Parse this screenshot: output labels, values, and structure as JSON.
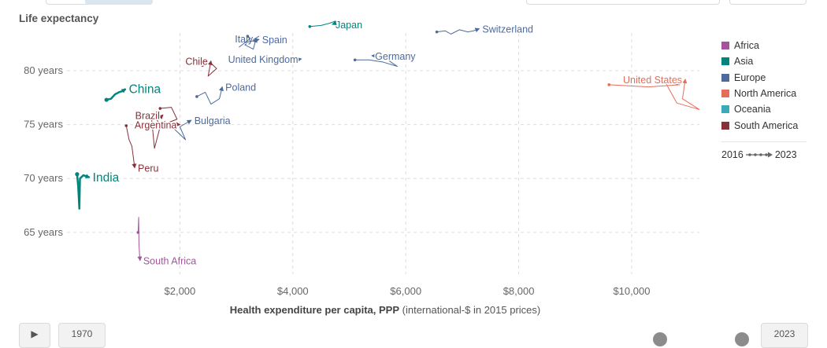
{
  "chart_data": {
    "type": "scatter",
    "title": "Life expectancy",
    "xlabel_bold": "Health expenditure per capita, PPP",
    "xlabel_rest": " (international-$ in 2015 prices)",
    "xlim": [
      0,
      11200
    ],
    "ylim": [
      62,
      83.5
    ],
    "x_ticks": [
      2000,
      4000,
      6000,
      8000,
      10000
    ],
    "x_tick_labels": [
      "$2,000",
      "$4,000",
      "$6,000",
      "$8,000",
      "$10,000"
    ],
    "y_ticks": [
      65,
      70,
      75,
      80
    ],
    "y_tick_labels": [
      "65 years",
      "70 years",
      "75 years",
      "80 years"
    ],
    "legend": [
      {
        "name": "Africa",
        "color": "#a2559c"
      },
      {
        "name": "Asia",
        "color": "#00847e"
      },
      {
        "name": "Europe",
        "color": "#4c6a9c"
      },
      {
        "name": "North America",
        "color": "#e56e5a"
      },
      {
        "name": "Oceania",
        "color": "#38aaba"
      },
      {
        "name": "South America",
        "color": "#883039"
      }
    ],
    "time_range": {
      "start": "2016",
      "end": "2023"
    },
    "series": [
      {
        "name": "Switzerland",
        "region": "Europe",
        "label_side": "right",
        "points": [
          [
            6550,
            83.6
          ],
          [
            6700,
            83.7
          ],
          [
            6800,
            83.4
          ],
          [
            6950,
            83.8
          ],
          [
            7100,
            83.6
          ],
          [
            7200,
            83.7
          ],
          [
            7300,
            83.9
          ]
        ]
      },
      {
        "name": "United States",
        "region": "North America",
        "label_side": "left",
        "points": [
          [
            9600,
            78.7
          ],
          [
            10300,
            78.5
          ],
          [
            10850,
            78.7
          ],
          [
            10600,
            78.9
          ],
          [
            10800,
            77.0
          ],
          [
            11200,
            76.4
          ],
          [
            10900,
            77.4
          ],
          [
            10950,
            79.2
          ]
        ]
      },
      {
        "name": "Japan",
        "region": "Asia",
        "label_side": "right",
        "points": [
          [
            4300,
            84.1
          ],
          [
            4500,
            84.2
          ],
          [
            4650,
            84.4
          ],
          [
            4750,
            84.6
          ],
          [
            4800,
            84.5
          ],
          [
            4700,
            84.3
          ]
        ]
      },
      {
        "name": "Italy",
        "region": "Europe",
        "label_side": "left",
        "points": [
          [
            3100,
            83.0
          ],
          [
            3250,
            82.7
          ],
          [
            3400,
            83.2
          ],
          [
            3150,
            82.4
          ],
          [
            3300,
            82.0
          ],
          [
            3350,
            83.0
          ]
        ]
      },
      {
        "name": "Spain",
        "region": "Europe",
        "label_side": "right",
        "points": [
          [
            3200,
            83.2
          ],
          [
            3250,
            83.0
          ],
          [
            3050,
            82.2
          ],
          [
            3150,
            82.6
          ],
          [
            3400,
            82.9
          ]
        ]
      },
      {
        "name": "United Kingdom",
        "region": "Europe",
        "label_side": "left",
        "points": [
          [
            3600,
            81.0
          ],
          [
            3750,
            81.2
          ],
          [
            3900,
            80.7
          ],
          [
            4050,
            81.0
          ],
          [
            4150,
            81.1
          ]
        ]
      },
      {
        "name": "Germany",
        "region": "Europe",
        "label_side": "right",
        "points": [
          [
            5100,
            81.0
          ],
          [
            5350,
            81.0
          ],
          [
            5600,
            80.8
          ],
          [
            5850,
            80.4
          ],
          [
            5600,
            81.3
          ],
          [
            5400,
            81.4
          ]
        ]
      },
      {
        "name": "Chile",
        "region": "South America",
        "label_side": "left",
        "points": [
          [
            2400,
            80.5
          ],
          [
            2550,
            80.7
          ],
          [
            2650,
            80.2
          ],
          [
            2500,
            79.5
          ],
          [
            2550,
            80.9
          ]
        ]
      },
      {
        "name": "Poland",
        "region": "Europe",
        "label_side": "right",
        "points": [
          [
            2300,
            77.6
          ],
          [
            2450,
            78.0
          ],
          [
            2550,
            76.9
          ],
          [
            2700,
            77.4
          ],
          [
            2750,
            78.5
          ]
        ]
      },
      {
        "name": "China",
        "region": "Asia",
        "label_side": "right",
        "points": [
          [
            700,
            77.3
          ],
          [
            780,
            77.4
          ],
          [
            850,
            77.8
          ],
          [
            920,
            78.0
          ],
          [
            980,
            78.1
          ],
          [
            1040,
            78.3
          ]
        ]
      },
      {
        "name": "Brazil",
        "region": "South America",
        "label_side": "left",
        "points": [
          [
            1300,
            75.9
          ],
          [
            1500,
            75.5
          ],
          [
            1550,
            72.8
          ],
          [
            1650,
            74.8
          ],
          [
            1600,
            75.4
          ],
          [
            1700,
            75.9
          ]
        ]
      },
      {
        "name": "Bulgaria",
        "region": "Europe",
        "label_side": "right",
        "points": [
          [
            1700,
            74.9
          ],
          [
            1900,
            74.6
          ],
          [
            2100,
            73.6
          ],
          [
            2000,
            74.8
          ],
          [
            2200,
            75.4
          ]
        ]
      },
      {
        "name": "Argentina",
        "region": "South America",
        "label_side": "left",
        "points": [
          [
            1650,
            76.5
          ],
          [
            1850,
            76.6
          ],
          [
            1950,
            75.5
          ],
          [
            1750,
            75.1
          ],
          [
            2000,
            75.0
          ]
        ]
      },
      {
        "name": "Peru",
        "region": "South America",
        "label_side": "right",
        "points": [
          [
            1050,
            74.9
          ],
          [
            1100,
            73.6
          ],
          [
            1150,
            73.0
          ],
          [
            1200,
            71.0
          ]
        ]
      },
      {
        "name": "India",
        "region": "Asia",
        "label_side": "right",
        "points": [
          [
            180,
            70.4
          ],
          [
            200,
            69.2
          ],
          [
            220,
            67.2
          ],
          [
            230,
            70.0
          ],
          [
            290,
            70.3
          ],
          [
            400,
            70.1
          ]
        ]
      },
      {
        "name": "South Africa",
        "region": "Africa",
        "label_side": "right",
        "points": [
          [
            1260,
            65.0
          ],
          [
            1270,
            66.4
          ],
          [
            1275,
            64.0
          ],
          [
            1285,
            63.0
          ],
          [
            1295,
            62.4
          ]
        ]
      }
    ]
  },
  "labels": [
    "Switzerland",
    "United States",
    "Japan",
    "Italy",
    "Spain",
    "United Kingdom",
    "Germany",
    "Chile",
    "Poland",
    "China",
    "Brazil",
    "Bulgaria",
    "Argentina",
    "Peru",
    "India",
    "South Africa"
  ],
  "controls": {
    "play_label": "▶",
    "start_year_label": "1970",
    "end_year_label": "2023"
  }
}
